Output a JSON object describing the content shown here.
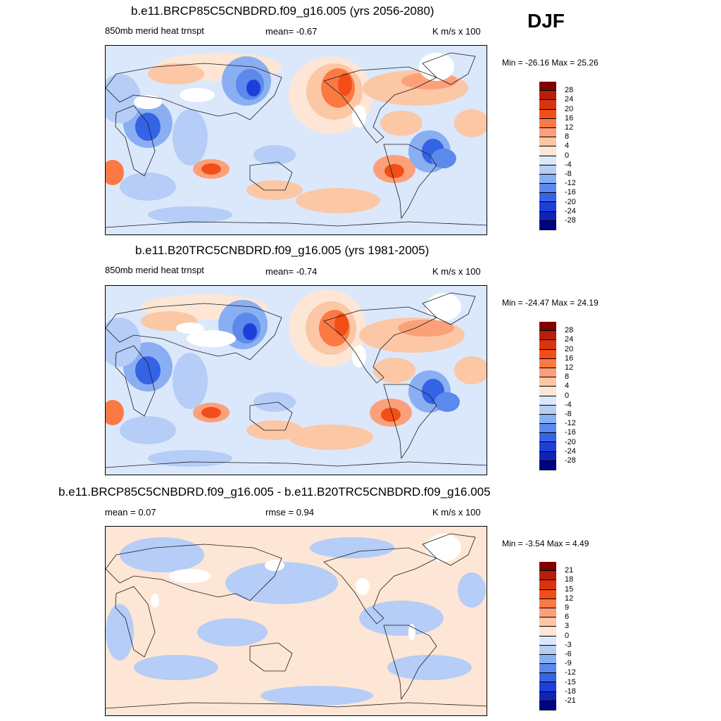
{
  "season": "DJF",
  "colors": {
    "scale": [
      "#800000",
      "#b3200c",
      "#d9330f",
      "#f34e17",
      "#fb7a44",
      "#fca07a",
      "#fcc7a5",
      "#fde6d5",
      "#dbe8fb",
      "#b5cdf7",
      "#8aaef2",
      "#5b89ec",
      "#3463e5",
      "#1d3fd8",
      "#0e23b7",
      "#000083"
    ],
    "land": "#1b1b1b"
  },
  "panels": [
    {
      "title": "b.e11.BRCP85C5CNBDRD.f09_g16.005 (yrs 2056-2080)",
      "left_label": "850mb merid heat trnspt",
      "center_label": "mean=  -0.67",
      "right_label": "K m/s x 100",
      "minmax": "Min = -26.16 Max =  25.26",
      "legend_labels": [
        "28",
        "24",
        "20",
        "16",
        "12",
        "8",
        "4",
        "0",
        "-4",
        "-8",
        "-12",
        "-16",
        "-20",
        "-24",
        "-28"
      ],
      "field": "scenario"
    },
    {
      "title": "b.e11.B20TRC5CNBDRD.f09_g16.005 (yrs 1981-2005)",
      "left_label": "850mb merid heat trnspt",
      "center_label": "mean=  -0.74",
      "right_label": "K m/s x 100",
      "minmax": "Min = -24.47 Max =  24.19",
      "legend_labels": [
        "28",
        "24",
        "20",
        "16",
        "12",
        "8",
        "4",
        "0",
        "-4",
        "-8",
        "-12",
        "-16",
        "-20",
        "-24",
        "-28"
      ],
      "field": "historical"
    },
    {
      "title": "b.e11.BRCP85C5CNBDRD.f09_g16.005 - b.e11.B20TRC5CNBDRD.f09_g16.005",
      "left_label": "mean =   0.07",
      "center_label": "rmse =   0.94",
      "right_label": "K m/s x 100",
      "minmax": "Min =  -3.54 Max =   4.49",
      "legend_labels": [
        "21",
        "18",
        "15",
        "12",
        "9",
        "6",
        "3",
        "0",
        "-3",
        "-6",
        "-9",
        "-12",
        "-15",
        "-18",
        "-21"
      ],
      "field": "difference"
    }
  ],
  "chart_data": [
    {
      "type": "heatmap",
      "title": "b.e11.BRCP85C5CNBDRD.f09_g16.005 (yrs 2056-2080)",
      "variable": "850mb merid heat trnspt",
      "units": "K m/s x 100",
      "mean": -0.67,
      "min": -26.16,
      "max": 25.26,
      "contour_levels": [
        -28,
        -24,
        -20,
        -16,
        -12,
        -8,
        -4,
        0,
        4,
        8,
        12,
        16,
        20,
        24,
        28
      ]
    },
    {
      "type": "heatmap",
      "title": "b.e11.B20TRC5CNBDRD.f09_g16.005 (yrs 1981-2005)",
      "variable": "850mb merid heat trnspt",
      "units": "K m/s x 100",
      "mean": -0.74,
      "min": -24.47,
      "max": 24.19,
      "contour_levels": [
        -28,
        -24,
        -20,
        -16,
        -12,
        -8,
        -4,
        0,
        4,
        8,
        12,
        16,
        20,
        24,
        28
      ]
    },
    {
      "type": "heatmap",
      "title": "b.e11.BRCP85C5CNBDRD.f09_g16.005 - b.e11.B20TRC5CNBDRD.f09_g16.005",
      "units": "K m/s x 100",
      "mean": 0.07,
      "rmse": 0.94,
      "min": -3.54,
      "max": 4.49,
      "contour_levels": [
        -21,
        -18,
        -15,
        -12,
        -9,
        -6,
        -3,
        0,
        3,
        6,
        9,
        12,
        15,
        18,
        21
      ]
    }
  ]
}
